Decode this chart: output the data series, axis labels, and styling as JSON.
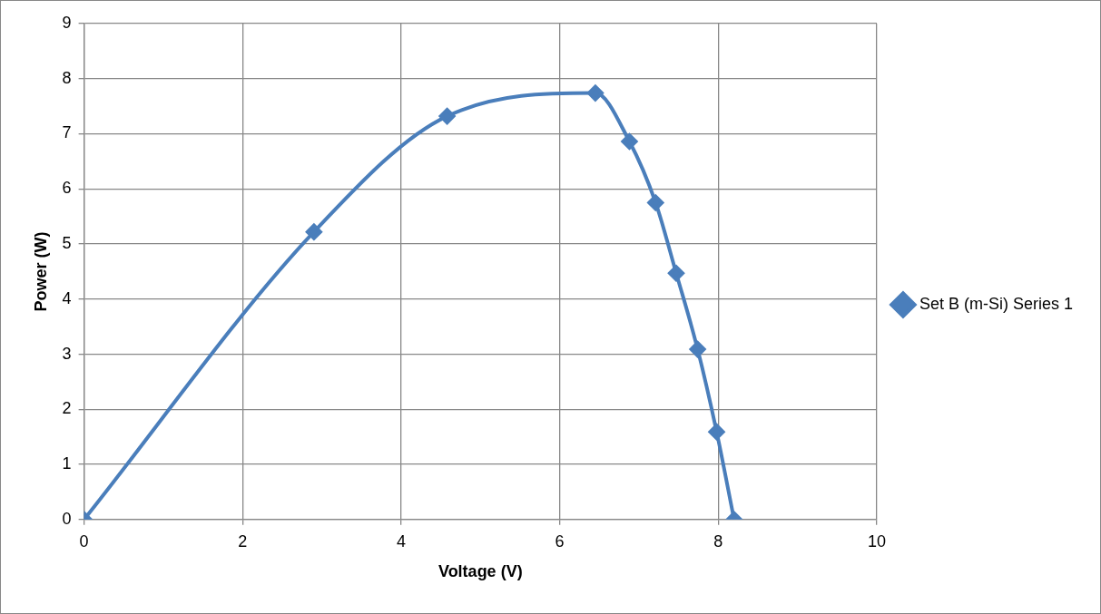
{
  "chart_data": {
    "type": "line",
    "xlabel": "Voltage (V)",
    "ylabel": "Power (W)",
    "xlim": [
      0,
      10
    ],
    "xticks": [
      0,
      2,
      4,
      6,
      8,
      10
    ],
    "ylim": [
      0,
      9
    ],
    "yticks": [
      0,
      1,
      2,
      3,
      4,
      5,
      6,
      7,
      8,
      9
    ],
    "grid": true,
    "legend": "right",
    "marker": "diamond",
    "line_style": "solid",
    "series": [
      {
        "name": "Set B (m-Si) Series 1",
        "color": "#4a7ebb",
        "x": [
          0,
          2.9,
          4.58,
          6.45,
          6.88,
          7.21,
          7.47,
          7.74,
          7.98,
          8.2
        ],
        "values": [
          0,
          5.22,
          7.32,
          7.74,
          6.86,
          5.75,
          4.47,
          3.09,
          1.59,
          0
        ]
      }
    ]
  }
}
